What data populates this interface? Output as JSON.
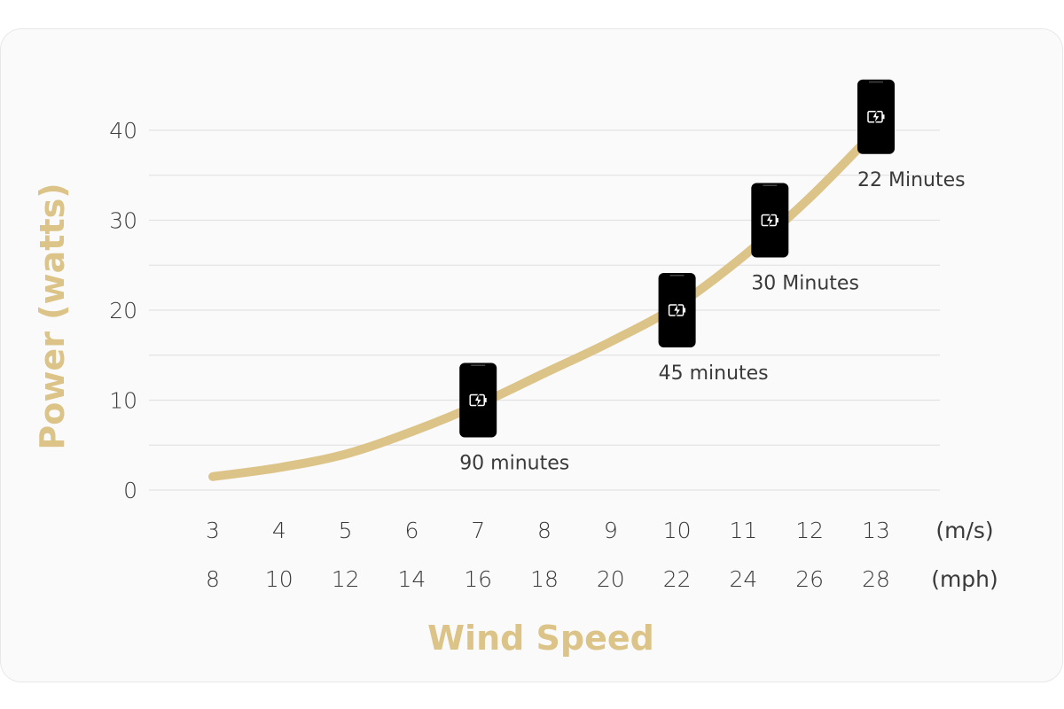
{
  "chart_data": {
    "type": "line",
    "ylabel": "Power (watts)",
    "xlabel": "Wind Speed",
    "y_ticks": [
      0,
      10,
      20,
      30,
      40
    ],
    "ylim": [
      0,
      40
    ],
    "x_ticks_ms": [
      "3",
      "4",
      "5",
      "6",
      "7",
      "8",
      "9",
      "10",
      "11",
      "12",
      "13"
    ],
    "x_ticks_mph": [
      "8",
      "10",
      "12",
      "14",
      "16",
      "18",
      "20",
      "22",
      "24",
      "26",
      "28"
    ],
    "x_unit_ms": "(m/s)",
    "x_unit_mph": "(mph)",
    "xlim": [
      3,
      13
    ],
    "grid": true,
    "curve": {
      "x": [
        3,
        4,
        5,
        6,
        7,
        8,
        9,
        10,
        11,
        12,
        13
      ],
      "y": [
        1.5,
        2.5,
        4,
        6.5,
        9.5,
        13,
        16.5,
        20.5,
        26,
        32.5,
        40
      ]
    },
    "annotations": [
      {
        "x": 7,
        "y": 10,
        "label": "90 minutes",
        "icon": "phone-charging-icon"
      },
      {
        "x": 10,
        "y": 20,
        "label": "45 minutes",
        "icon": "phone-charging-icon"
      },
      {
        "x": 11.4,
        "y": 30,
        "label": "30 Minutes",
        "icon": "phone-charging-icon"
      },
      {
        "x": 13,
        "y": 41.5,
        "label": "22 Minutes",
        "icon": "phone-charging-icon"
      }
    ],
    "colors": {
      "curve": "#dcc488",
      "axis_title": "#dcc488",
      "grid": "#e3e3e3",
      "phone": "#000000",
      "text": "#3a3a3a"
    }
  }
}
